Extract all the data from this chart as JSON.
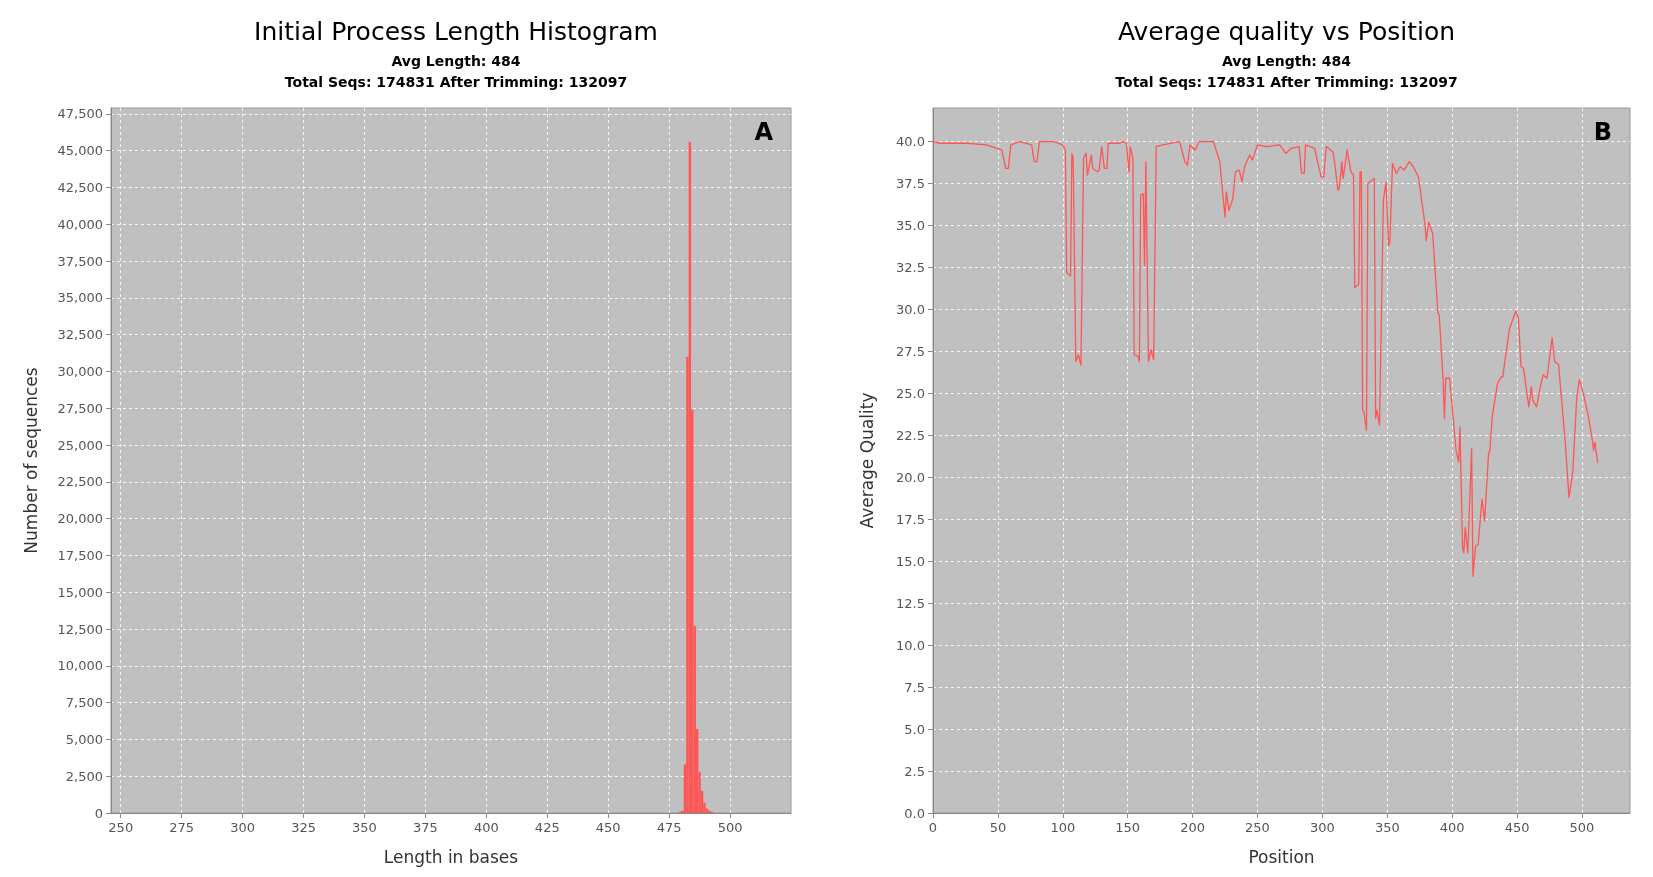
{
  "chart_data": [
    {
      "type": "histogram",
      "title": "Initial Process Length Histogram",
      "subtitle": "Avg Length: 484\nTotal Seqs: 174831 After Trimming: 132097",
      "xlabel": "Length in bases",
      "ylabel": "Number of sequences",
      "annotations": [
        "A"
      ],
      "color": "#ff5555",
      "grid": true,
      "bins": [
        479,
        480,
        481,
        482,
        483,
        484,
        485,
        486,
        487,
        488,
        489,
        490,
        491,
        492,
        493
      ],
      "values": [
        80,
        150,
        3300,
        31000,
        45600,
        27400,
        12700,
        5700,
        2800,
        1500,
        700,
        300,
        150,
        80
      ],
      "xlim": [
        246,
        525
      ],
      "xticks": [
        250,
        275,
        300,
        325,
        350,
        375,
        400,
        425,
        450,
        475,
        500
      ],
      "ylim": [
        0,
        47900
      ],
      "yticks": [
        0,
        {
          "value": 2500,
          "label": "2,500"
        },
        {
          "value": 5000,
          "label": "5,000"
        },
        {
          "value": 7500,
          "label": "7,500"
        },
        {
          "value": 10000,
          "label": "10,000"
        },
        {
          "value": 12500,
          "label": "12,500"
        },
        {
          "value": 15000,
          "label": "15,000"
        },
        {
          "value": 17500,
          "label": "17,500"
        },
        {
          "value": 20000,
          "label": "20,000"
        },
        {
          "value": 22500,
          "label": "22,500"
        },
        {
          "value": 25000,
          "label": "25,000"
        },
        {
          "value": 27500,
          "label": "27,500"
        },
        {
          "value": 30000,
          "label": "30,000"
        },
        {
          "value": 32500,
          "label": "32,500"
        },
        {
          "value": 35000,
          "label": "35,000"
        },
        {
          "value": 37500,
          "label": "37,500"
        },
        {
          "value": 40000,
          "label": "40,000"
        },
        {
          "value": 42500,
          "label": "42,500"
        },
        {
          "value": 45000,
          "label": "45,000"
        },
        {
          "value": 47500,
          "label": "47,500"
        }
      ]
    },
    {
      "type": "line",
      "title": "Average quality vs Position",
      "subtitle": "Avg Length: 484\nTotal Seqs: 174831 After Trimming: 132097",
      "xlabel": "Position",
      "ylabel": "Average Quality",
      "annotations": [
        "B"
      ],
      "grid": true,
      "marker": "none",
      "series": [
        {
          "color": "#ff5555",
          "x": [
            0,
            5,
            26,
            41,
            53,
            56,
            58,
            60,
            67,
            76,
            78,
            80,
            82,
            93,
            100,
            102,
            103,
            106,
            107,
            108,
            110,
            112,
            114,
            116,
            118,
            119,
            122,
            123,
            127,
            128,
            130,
            132,
            134,
            135,
            144,
            146,
            149,
            151,
            152,
            154,
            155,
            158,
            159,
            160,
            162,
            163,
            164,
            166,
            168,
            170,
            172,
            177,
            190,
            194,
            196,
            198,
            202,
            205,
            216,
            221,
            223,
            225,
            226,
            228,
            231,
            233,
            236,
            238,
            240,
            244,
            246,
            250,
            257,
            267,
            272,
            276,
            282,
            284,
            286,
            287,
            294,
            296,
            299,
            301,
            303,
            308,
            309,
            312,
            313,
            315,
            316,
            319,
            322,
            324,
            325,
            328,
            329,
            330,
            331,
            332,
            334,
            335,
            340,
            341,
            342,
            344,
            347,
            349,
            351,
            352,
            354,
            357,
            360,
            363,
            367,
            370,
            374,
            379,
            380,
            382,
            385,
            389,
            390,
            393,
            394,
            395,
            398,
            400,
            403,
            405,
            406,
            408,
            409,
            410,
            412,
            415,
            416,
            418,
            420,
            423,
            425,
            428,
            429,
            431,
            435,
            438,
            439,
            444,
            449,
            451,
            453,
            455,
            459,
            461,
            462,
            465,
            468,
            470,
            473,
            477,
            479,
            482,
            487,
            490,
            493,
            496,
            498,
            501,
            505,
            508,
            509,
            510,
            512
          ],
          "values": [
            40.0,
            39.9,
            39.9,
            39.8,
            39.5,
            38.4,
            38.4,
            39.8,
            40.0,
            39.8,
            38.8,
            38.8,
            40.0,
            40.0,
            39.8,
            39.5,
            32.2,
            32.0,
            39.3,
            39.0,
            26.9,
            27.3,
            26.7,
            39.0,
            39.3,
            38.0,
            39.2,
            38.4,
            38.2,
            38.3,
            39.7,
            38.4,
            38.4,
            39.9,
            39.9,
            40.0,
            39.9,
            38.2,
            39.7,
            39.0,
            27.3,
            27.2,
            26.9,
            36.8,
            36.9,
            32.6,
            38.8,
            26.9,
            27.6,
            27.0,
            39.7,
            39.8,
            40.0,
            38.8,
            38.6,
            39.8,
            39.5,
            40.0,
            40.0,
            38.8,
            37.1,
            35.5,
            37.0,
            35.9,
            36.6,
            38.2,
            38.3,
            37.6,
            38.5,
            39.2,
            38.9,
            39.8,
            39.7,
            39.8,
            39.3,
            39.6,
            39.7,
            38.1,
            38.1,
            39.8,
            39.6,
            38.9,
            37.9,
            37.9,
            39.7,
            39.4,
            39.0,
            37.1,
            37.2,
            38.8,
            37.8,
            39.5,
            38.2,
            38.0,
            31.3,
            31.5,
            38.2,
            38.2,
            24.0,
            23.9,
            22.8,
            37.5,
            37.8,
            23.5,
            24.0,
            23.1,
            36.5,
            37.6,
            33.8,
            34.0,
            38.7,
            38.1,
            38.5,
            38.3,
            38.8,
            38.5,
            37.9,
            35.1,
            34.1,
            35.2,
            34.5,
            29.8,
            29.7,
            25.8,
            23.5,
            25.9,
            25.9,
            24.2,
            21.6,
            20.9,
            23.0,
            15.8,
            15.5,
            17.0,
            15.5,
            21.7,
            14.1,
            15.9,
            16.0,
            18.7,
            17.4,
            21.4,
            21.6,
            23.7,
            25.6,
            26.0,
            26.0,
            28.8,
            29.9,
            29.5,
            26.6,
            26.5,
            24.2,
            25.4,
            24.6,
            24.2,
            25.4,
            26.1,
            25.9,
            28.3,
            26.9,
            26.7,
            22.2,
            18.8,
            20.4,
            24.8,
            25.8,
            25.0,
            23.6,
            22.2,
            21.6,
            22.1,
            20.9
          ]
        }
      ],
      "xlim": [
        0,
        537
      ],
      "xticks": [
        0,
        50,
        100,
        150,
        200,
        250,
        300,
        350,
        400,
        450,
        500
      ],
      "ylim": [
        0,
        42
      ],
      "yticks": [
        {
          "value": 0,
          "label": "0.0"
        },
        2.5,
        {
          "value": 5,
          "label": "5.0"
        },
        7.5,
        {
          "value": 10,
          "label": "10.0"
        },
        12.5,
        {
          "value": 15,
          "label": "15.0"
        },
        17.5,
        {
          "value": 20,
          "label": "20.0"
        },
        22.5,
        {
          "value": 25,
          "label": "25.0"
        },
        27.5,
        {
          "value": 30,
          "label": "30.0"
        },
        32.5,
        {
          "value": 35,
          "label": "35.0"
        },
        37.5,
        {
          "value": 40,
          "label": "40.0"
        }
      ]
    }
  ]
}
